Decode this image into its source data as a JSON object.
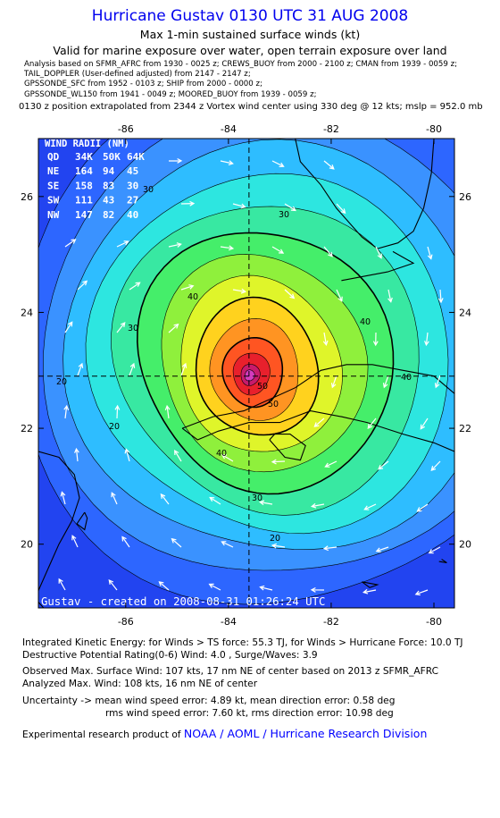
{
  "header": {
    "title": "Hurricane Gustav 0130 UTC 31 AUG 2008",
    "subtitle": "Max 1-min sustained surface winds (kt)",
    "validity": "Valid for marine exposure over water, open terrain exposure over land",
    "analysis_lines": [
      "Analysis based on   SFMR_AFRC from 1930 - 0025 z;  CREWS_BUOY from 2000 - 2100 z;  CMAN from 1939 - 0059 z;",
      "TAIL_DOPPLER (User-defined adjusted) from 2147 - 2147 z;",
      "GPSSONDE_SFC from 1952 - 0103 z;  SHIP from 2000 - 0000 z;",
      "GPSSONDE_WL150 from 1941 - 0049 z;  MOORED_BUOY from 1939 - 0059 z;"
    ],
    "extrapolation": "0130 z position extrapolated from 2344 z Vortex wind center using 330 deg @ 12 kts; mslp = 952.0 mb"
  },
  "map": {
    "x_ticks": [
      "-86",
      "-84",
      "-82",
      "-80"
    ],
    "y_ticks": [
      "26",
      "24",
      "22",
      "20"
    ],
    "lon_range": [
      -87.7,
      -79.6
    ],
    "lat_range": [
      18.9,
      27.0
    ],
    "center": {
      "lon": -83.6,
      "lat": 22.9
    },
    "contour_labels": [
      "20",
      "20",
      "20",
      "30",
      "30",
      "30",
      "30",
      "40",
      "40",
      "40",
      "40",
      "50",
      "50"
    ],
    "watermark": "Gustav - created on 2008-08-31 01:26:24 UTC",
    "wind_radii": {
      "title": "WIND RADII (NM)",
      "header": [
        "QD",
        "34K",
        "50K",
        "64K"
      ],
      "rows": [
        [
          "NE",
          "164",
          "94",
          "45"
        ],
        [
          "SE",
          "158",
          "83",
          "30"
        ],
        [
          "SW",
          "111",
          "43",
          "27"
        ],
        [
          "NW",
          "147",
          "82",
          "40"
        ]
      ]
    },
    "colors": {
      "ocean": "#2244f0",
      "band_colors": [
        "#2d66ff",
        "#3a92ff",
        "#2ebdff",
        "#2de6e0",
        "#38e8a2",
        "#45ee6a",
        "#8ff03c",
        "#dff52a",
        "#ffd21e",
        "#ff9422",
        "#ff5522",
        "#e8202c",
        "#c71b6c",
        "#d33cbe"
      ]
    }
  },
  "footer": {
    "ike": "Integrated Kinetic Energy:  for Winds > TS force: 55.3 TJ,  for Winds > Hurricane Force: 10.0 TJ",
    "destructive": "Destructive Potential Rating(0-6)   Wind: 4.0 , Surge/Waves: 3.9",
    "observed": "Observed Max. Surface Wind: 107 kts, 17 nm NE of center based on 2013 z SFMR_AFRC",
    "analyzed": "Analyzed Max. Wind: 108 kts, 16 nm NE of center",
    "uncertainty1": "Uncertainty -> mean wind speed error: 4.89 kt,   mean direction error: 0.58 deg",
    "uncertainty2": "rms wind speed error: 7.60 kt,   rms direction error: 10.98 deg",
    "credit_prefix": "Experimental research product of ",
    "credit_link": "NOAA / AOML / Hurricane Research Division"
  }
}
